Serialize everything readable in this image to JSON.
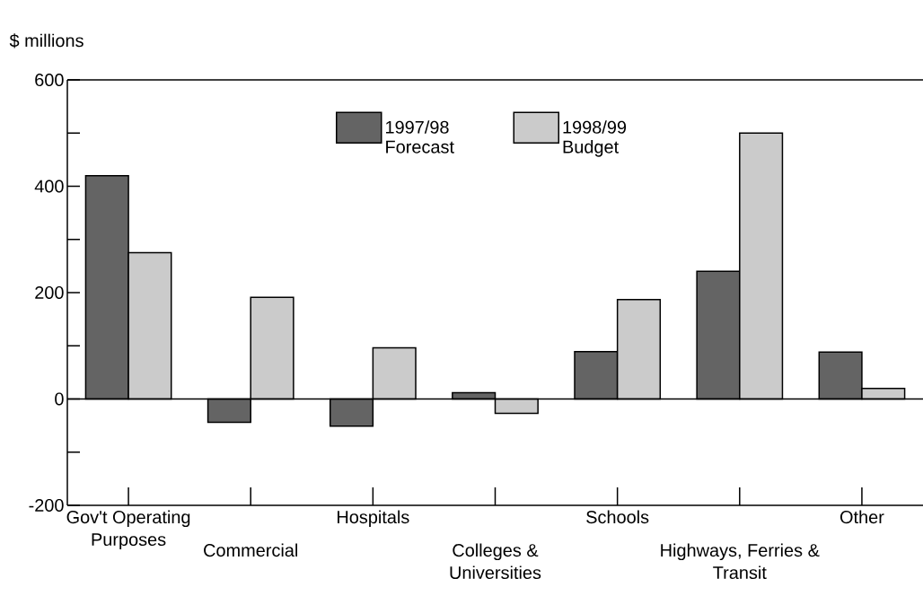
{
  "chart_data": {
    "type": "bar",
    "ylabel": "$ millions",
    "categories": [
      "Gov't Operating Purposes",
      "Commercial",
      "Hospitals",
      "Colleges & Universities",
      "Schools",
      "Highways, Ferries & Transit",
      "Other"
    ],
    "series": [
      {
        "name": "1997/98 Forecast",
        "color": "#646464",
        "values": [
          420,
          -44,
          -51,
          12,
          89,
          240,
          88
        ]
      },
      {
        "name": "1998/99 Budget",
        "color": "#cbcbcb",
        "values": [
          275,
          191,
          96,
          -27,
          187,
          500,
          20
        ]
      }
    ],
    "ylim": [
      -200,
      600
    ],
    "yticks": [
      -200,
      {
        "value": -100,
        "label": null
      },
      0,
      {
        "value": 100,
        "label": null
      },
      200,
      {
        "value": 300,
        "label": null
      },
      400,
      {
        "value": 500,
        "label": null
      },
      600
    ],
    "legend": "top"
  }
}
